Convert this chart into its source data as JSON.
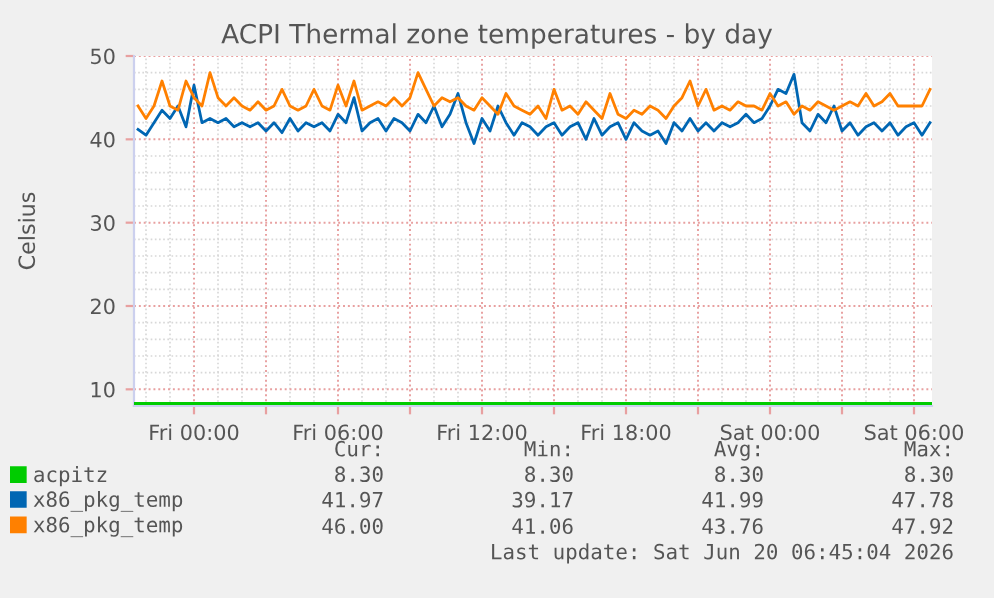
{
  "chart_data": {
    "type": "line",
    "title": "ACPI Thermal zone temperatures - by day",
    "ylabel": "Celsius",
    "x": [
      "2026-06-18T21:40",
      "2026-06-18T22:00",
      "2026-06-18T22:20",
      "2026-06-18T22:40",
      "2026-06-18T23:00",
      "2026-06-18T23:20",
      "2026-06-18T23:40",
      "2026-06-19T00:00",
      "2026-06-19T00:20",
      "2026-06-19T00:40",
      "2026-06-19T01:00",
      "2026-06-19T01:20",
      "2026-06-19T01:40",
      "2026-06-19T02:00",
      "2026-06-19T02:20",
      "2026-06-19T02:40",
      "2026-06-19T03:00",
      "2026-06-19T03:20",
      "2026-06-19T03:40",
      "2026-06-19T04:00",
      "2026-06-19T04:20",
      "2026-06-19T04:40",
      "2026-06-19T05:00",
      "2026-06-19T05:20",
      "2026-06-19T05:40",
      "2026-06-19T06:00",
      "2026-06-19T06:20",
      "2026-06-19T06:40",
      "2026-06-19T07:00",
      "2026-06-19T07:20",
      "2026-06-19T07:40",
      "2026-06-19T08:00",
      "2026-06-19T08:20",
      "2026-06-19T08:40",
      "2026-06-19T09:00",
      "2026-06-19T09:20",
      "2026-06-19T09:40",
      "2026-06-19T10:00",
      "2026-06-19T10:20",
      "2026-06-19T10:40",
      "2026-06-19T11:00",
      "2026-06-19T11:20",
      "2026-06-19T11:40",
      "2026-06-19T12:00",
      "2026-06-19T12:20",
      "2026-06-19T12:40",
      "2026-06-19T13:00",
      "2026-06-19T13:20",
      "2026-06-19T13:40",
      "2026-06-19T14:00",
      "2026-06-19T14:20",
      "2026-06-19T14:40",
      "2026-06-19T15:00",
      "2026-06-19T15:20",
      "2026-06-19T15:40",
      "2026-06-19T16:00",
      "2026-06-19T16:20",
      "2026-06-19T16:40",
      "2026-06-19T17:00",
      "2026-06-19T17:20",
      "2026-06-19T17:40",
      "2026-06-19T18:00",
      "2026-06-19T18:20",
      "2026-06-19T18:40",
      "2026-06-19T19:00",
      "2026-06-19T19:20",
      "2026-06-19T19:40",
      "2026-06-19T20:00",
      "2026-06-19T20:20",
      "2026-06-19T20:40",
      "2026-06-19T21:00",
      "2026-06-19T21:20",
      "2026-06-19T21:40",
      "2026-06-19T22:00",
      "2026-06-19T22:20",
      "2026-06-19T22:40",
      "2026-06-19T23:00",
      "2026-06-19T23:20",
      "2026-06-19T23:40",
      "2026-06-20T00:00",
      "2026-06-20T00:20",
      "2026-06-20T00:40",
      "2026-06-20T01:00",
      "2026-06-20T01:20",
      "2026-06-20T01:40",
      "2026-06-20T02:00",
      "2026-06-20T02:20",
      "2026-06-20T02:40",
      "2026-06-20T03:00",
      "2026-06-20T03:20",
      "2026-06-20T03:40",
      "2026-06-20T04:00",
      "2026-06-20T04:20",
      "2026-06-20T04:40",
      "2026-06-20T05:00",
      "2026-06-20T05:20",
      "2026-06-20T05:40",
      "2026-06-20T06:00",
      "2026-06-20T06:20",
      "2026-06-20T06:40"
    ],
    "series": [
      {
        "name": "acpitz",
        "color": "#00cc00",
        "x": [
          "2026-06-18T21:30",
          "2026-06-20T06:45"
        ],
        "values": [
          8.3,
          8.3
        ]
      },
      {
        "name": "x86_pkg_temp",
        "color": "#0066b3",
        "values": [
          41.2,
          40.5,
          42,
          43.5,
          42.5,
          44,
          41.5,
          46.5,
          42,
          42.5,
          42,
          42.5,
          41.5,
          42,
          41.5,
          42,
          41,
          42,
          40.8,
          42.5,
          41,
          42,
          41.5,
          42,
          41,
          43,
          42,
          45,
          41,
          42,
          42.5,
          41,
          42.5,
          42,
          41,
          43,
          42,
          44,
          41.5,
          43,
          45.5,
          42,
          39.5,
          42.5,
          41,
          44,
          42,
          40.5,
          42,
          41.5,
          40.5,
          41.5,
          42,
          40.5,
          41.5,
          42,
          40,
          42.5,
          40.5,
          41.5,
          42,
          40,
          42,
          41,
          40.5,
          41,
          39.5,
          42,
          41,
          42.5,
          41,
          42,
          41,
          42,
          41.5,
          42,
          43,
          42,
          42.5,
          44,
          46,
          45.5,
          47.8,
          42,
          41,
          43,
          42,
          44,
          41,
          42,
          40.5,
          41.5,
          42,
          41,
          42,
          40.5,
          41.5,
          42,
          40.5,
          42
        ]
      },
      {
        "name": "x86_pkg_temp",
        "color": "#ff8000",
        "values": [
          44,
          42.5,
          44,
          47,
          44,
          43.5,
          47,
          45,
          44,
          48,
          45,
          44,
          45,
          44,
          43.5,
          44.5,
          43.5,
          44,
          46,
          44,
          43.5,
          44,
          46,
          44,
          43.5,
          46.5,
          44,
          47,
          43.5,
          44,
          44.5,
          44,
          45,
          44,
          45,
          48,
          46,
          44,
          45,
          44.5,
          45,
          44,
          43.5,
          45,
          44,
          43,
          45.5,
          44,
          43.5,
          43,
          44,
          42.5,
          46,
          43.5,
          44,
          43,
          44.5,
          43.5,
          42.5,
          45.5,
          43,
          42.5,
          43.5,
          43,
          44,
          43.5,
          42.5,
          44,
          45,
          47,
          44,
          46,
          43.5,
          44,
          43.5,
          44.5,
          44,
          44,
          43.5,
          45.5,
          44,
          44.5,
          43,
          44,
          43.5,
          44.5,
          44,
          43.5,
          44,
          44.5,
          44,
          45.5,
          44,
          44.5,
          45.5,
          44,
          44,
          44,
          44,
          46
        ]
      }
    ],
    "xlim": [
      "2026-06-18T21:30",
      "2026-06-20T06:45"
    ],
    "xticks": [
      {
        "value": "2026-06-19T00:00",
        "label": "Fri 00:00"
      },
      {
        "value": "2026-06-19T03:00",
        "label": null
      },
      {
        "value": "2026-06-19T06:00",
        "label": "Fri 06:00"
      },
      {
        "value": "2026-06-19T09:00",
        "label": null
      },
      {
        "value": "2026-06-19T12:00",
        "label": "Fri 12:00"
      },
      {
        "value": "2026-06-19T15:00",
        "label": null
      },
      {
        "value": "2026-06-19T18:00",
        "label": "Fri 18:00"
      },
      {
        "value": "2026-06-19T21:00",
        "label": null
      },
      {
        "value": "2026-06-20T00:00",
        "label": "Sat 00:00"
      },
      {
        "value": "2026-06-20T03:00",
        "label": null
      },
      {
        "value": "2026-06-20T06:00",
        "label": "Sat 06:00"
      }
    ],
    "ylim": [
      8,
      50
    ],
    "yticks": [
      10,
      20,
      30,
      40,
      50
    ],
    "grid": true,
    "legend": "bottom",
    "line_style": "solid",
    "annotations": [
      "Cur:",
      "Min:",
      "Avg:",
      "Max:",
      "8.30",
      "8.30",
      "8.30",
      "8.30",
      "41.97",
      "39.17",
      "41.99",
      "47.78",
      "46.00",
      "41.06",
      "43.76",
      "47.92",
      "Last update: Sat Jun 20 06:45:04 2026"
    ]
  }
}
